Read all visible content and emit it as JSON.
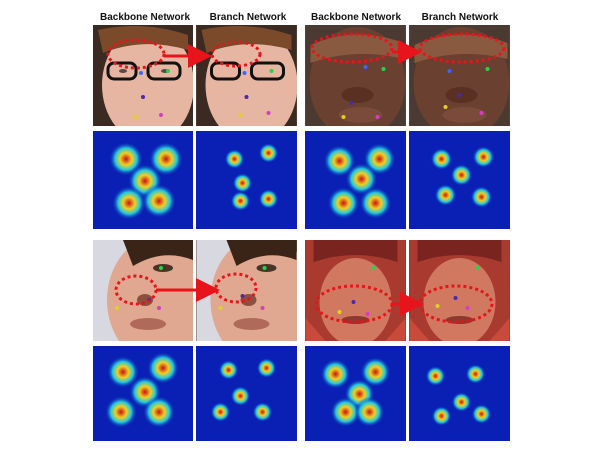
{
  "columns": [
    "Backbone Network",
    "Branch Network",
    "Backbone Network",
    "Branch Network"
  ],
  "groups": [
    {
      "subject": "pale face with dark-rimmed glasses",
      "highlight": "eyes"
    },
    {
      "subject": "dark-skinned man, squinting",
      "highlight": "eyes"
    },
    {
      "subject": "woman, close-up lit from right",
      "highlight": "nose"
    },
    {
      "subject": "man in red-tinted knit cap",
      "highlight": "mouth"
    }
  ],
  "colors": {
    "ellipse": "#e8141b",
    "arrow": "#e8141b",
    "heatmap_bg": "#0a1fb4",
    "heatmap_peak": "#c8101a",
    "landmark_left_eye": "#3a66ff",
    "landmark_right_eye": "#2bd14a",
    "landmark_nose": "#4a2aa8",
    "landmark_mouth_left": "#e0d020",
    "landmark_mouth_right": "#d040c0"
  }
}
